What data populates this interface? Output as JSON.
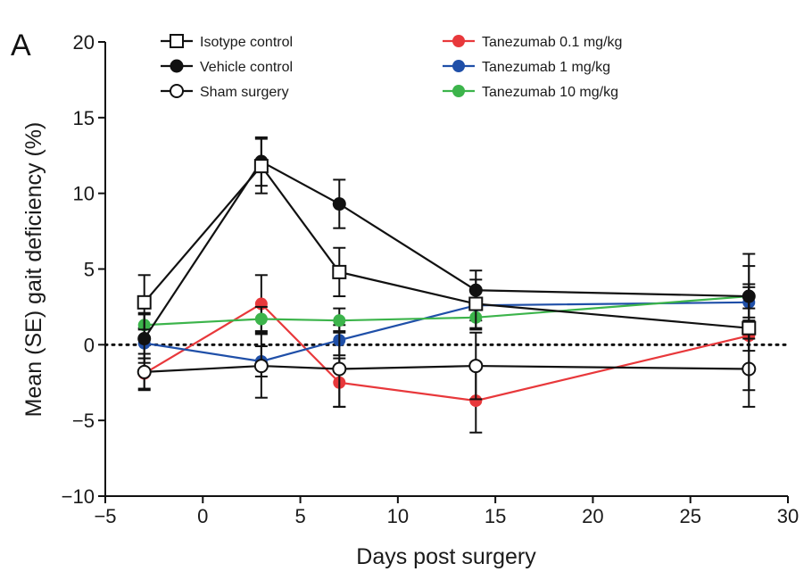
{
  "panel_label": "A",
  "chart_data": {
    "type": "line",
    "title": "",
    "xlabel": "Days post surgery",
    "ylabel": "Mean (SE) gait deficiency (%)",
    "xlim": [
      -5,
      30
    ],
    "ylim": [
      -10,
      20
    ],
    "xticks": [
      -5,
      0,
      5,
      10,
      15,
      20,
      25,
      30
    ],
    "xtick_labels": [
      "−5",
      "0",
      "5",
      "10",
      "15",
      "20",
      "25",
      "30"
    ],
    "yticks": [
      -10,
      -5,
      0,
      5,
      10,
      15,
      20
    ],
    "ytick_labels": [
      "−10",
      "−5",
      "0",
      "5",
      "10",
      "15",
      "20"
    ],
    "reference_line": {
      "y": 0,
      "style": "dotted"
    },
    "grid": false,
    "legend": {
      "placement": "top",
      "columns": 2
    },
    "series": [
      {
        "name": "Isotype control",
        "color": "#111111",
        "marker": "open-square",
        "x": [
          -3,
          3,
          7,
          14,
          28
        ],
        "y": [
          2.8,
          11.8,
          4.8,
          2.7,
          1.1
        ],
        "err": [
          1.8,
          1.8,
          1.6,
          1.6,
          4.1
        ]
      },
      {
        "name": "Vehicle control",
        "color": "#111111",
        "marker": "filled-circle",
        "x": [
          -3,
          3,
          7,
          14,
          28
        ],
        "y": [
          0.4,
          12.1,
          9.3,
          3.6,
          3.2
        ],
        "err": [
          1.6,
          1.6,
          1.6,
          1.3,
          2.8
        ]
      },
      {
        "name": "Sham surgery",
        "color": "#111111",
        "marker": "open-circle",
        "x": [
          -3,
          3,
          7,
          14,
          28
        ],
        "y": [
          -1.8,
          -1.4,
          -1.6,
          -1.4,
          -1.6
        ],
        "err": [
          1.2,
          2.1,
          2.5,
          2.2,
          2.5
        ]
      },
      {
        "name": "Tanezumab 0.1 mg/kg",
        "color": "#e8383b",
        "marker": "filled-circle",
        "x": [
          -3,
          3,
          7,
          14,
          28
        ],
        "y": [
          -1.9,
          2.7,
          -2.5,
          -3.7,
          0.6
        ],
        "err": [
          1.0,
          1.9,
          1.6,
          2.1,
          1.0
        ]
      },
      {
        "name": "Tanezumab 1 mg/kg",
        "color": "#1f4fa8",
        "marker": "filled-circle",
        "x": [
          -3,
          3,
          7,
          14,
          28
        ],
        "y": [
          0.1,
          -1.1,
          0.3,
          2.6,
          2.8
        ],
        "err": [
          1.0,
          1.0,
          1.0,
          1.0,
          1.0
        ]
      },
      {
        "name": "Tanezumab 10 mg/kg",
        "color": "#3cb44b",
        "marker": "filled-circle",
        "x": [
          -3,
          3,
          7,
          14,
          28
        ],
        "y": [
          1.3,
          1.7,
          1.6,
          1.8,
          3.2
        ],
        "err": [
          0.8,
          0.8,
          0.8,
          0.8,
          0.8
        ]
      }
    ]
  }
}
